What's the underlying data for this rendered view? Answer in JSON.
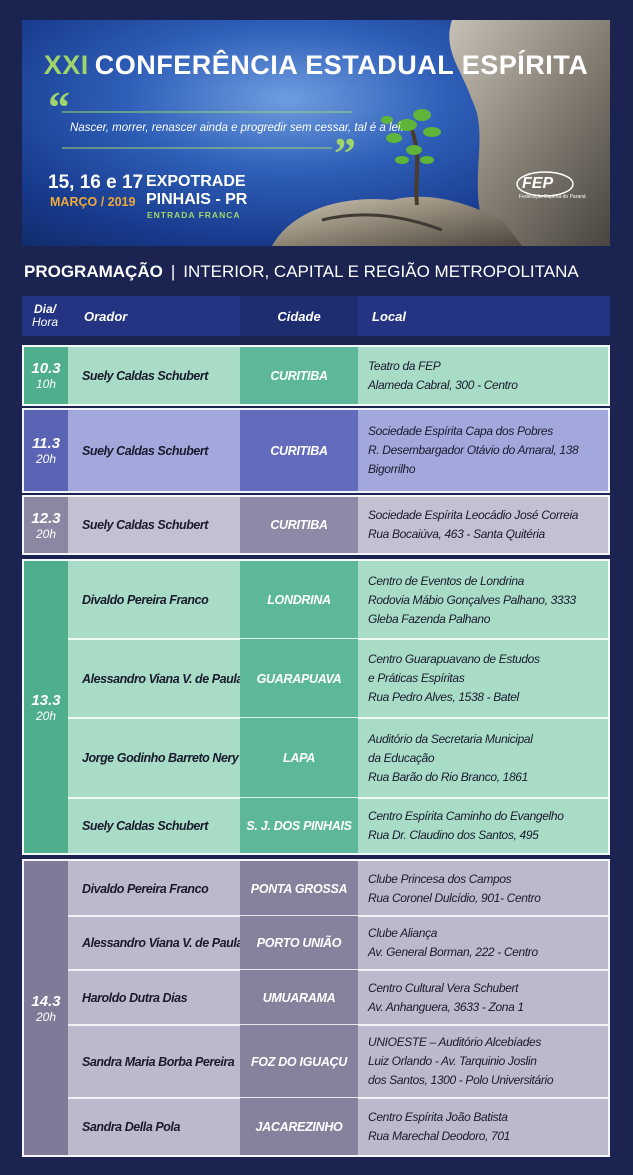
{
  "header": {
    "title_number": "XXI",
    "title": "CONFERÊNCIA ESTADUAL ESPÍRITA",
    "quote": "Nascer, morrer, renascer ainda e progredir sem cessar, tal é a lei.",
    "dates": "15, 16 e 17",
    "month": "MARÇO / 2019",
    "venue": "EXPOTRADE",
    "city": "PINHAIS - PR",
    "entry": "ENTRADA FRANCA",
    "logo": "FEP",
    "logo_sub": "Federação Espírita do Paraná"
  },
  "section": {
    "title": "PROGRAMAÇÃO",
    "subtitle": "INTERIOR, CAPITAL E REGIÃO METROPOLITANA"
  },
  "table": {
    "columns": {
      "day_hour": [
        "Dia/",
        "Hora"
      ],
      "speaker": "Orador",
      "city": "Cidade",
      "location": "Local"
    },
    "groups": [
      {
        "day": "10.3",
        "hour": "10h",
        "rows": [
          {
            "speaker": "Suely Caldas Schubert",
            "city": "CURITIBA",
            "location": [
              "Teatro da FEP",
              "Alameda Cabral, 300 - Centro"
            ]
          }
        ]
      },
      {
        "day": "11.3",
        "hour": "20h",
        "rows": [
          {
            "speaker": "Suely Caldas Schubert",
            "city": "CURITIBA",
            "location": [
              "Sociedade Espírita Capa dos Pobres",
              "R. Desembargador Otávio do Amaral, 138",
              "Bigorrilho"
            ]
          }
        ]
      },
      {
        "day": "12.3",
        "hour": "20h",
        "rows": [
          {
            "speaker": "Suely Caldas Schubert",
            "city": "CURITIBA",
            "location": [
              "Sociedade Espírita Leocádio José Correia",
              "Rua Bocaiúva, 463 - Santa Quitéria"
            ]
          }
        ]
      },
      {
        "day": "13.3",
        "hour": "20h",
        "rows": [
          {
            "speaker": "Divaldo Pereira Franco",
            "city": "LONDRINA",
            "location": [
              "Centro de Eventos de Londrina",
              "Rodovia Mábio Gonçalves Palhano, 3333",
              "Gleba Fazenda Palhano"
            ]
          },
          {
            "speaker": "Alessandro Viana V. de Paula",
            "city": "GUARAPUAVA",
            "location": [
              "Centro Guarapuavano de Estudos",
              "e Práticas Espíritas",
              "Rua Pedro Alves, 1538 - Batel"
            ]
          },
          {
            "speaker": "Jorge Godinho Barreto Nery",
            "city": "LAPA",
            "location": [
              "Auditório da Secretaria Municipal",
              "da Educação",
              "Rua Barão do Rio Branco, 1861"
            ]
          },
          {
            "speaker": "Suely Caldas Schubert",
            "city": "S. J. DOS PINHAIS",
            "location": [
              "Centro Espírita Caminho do Evangelho",
              "Rua Dr. Claudino dos Santos, 495"
            ]
          }
        ]
      },
      {
        "day": "14.3",
        "hour": "20h",
        "rows": [
          {
            "speaker": "Divaldo Pereira Franco",
            "city": "PONTA GROSSA",
            "location": [
              "Clube Princesa dos Campos",
              "Rua Coronel Dulcídio, 901- Centro"
            ]
          },
          {
            "speaker": "Alessandro Viana V. de Paula",
            "city": "PORTO UNIÃO",
            "location": [
              "Clube Aliança",
              "Av. General Borman, 222 - Centro"
            ]
          },
          {
            "speaker": "Haroldo Dutra Dias",
            "city": "UMUARAMA",
            "location": [
              "Centro Cultural Vera Schubert",
              "Av. Anhanguera, 3633 - Zona 1"
            ]
          },
          {
            "speaker": "Sandra Maria Borba Pereira",
            "city": "FOZ DO IGUAÇU",
            "location": [
              "UNIOESTE – Auditório Alcebíades",
              "Luiz Orlando - Av. Tarquinio Joslin",
              "dos Santos, 1300 - Polo Universitário"
            ]
          },
          {
            "speaker": "Sandra Della Pola",
            "city": "JACAREZINHO",
            "location": [
              "Centro Espírita João Batista",
              "Rua Marechal Deodoro, 701"
            ]
          }
        ]
      }
    ]
  }
}
